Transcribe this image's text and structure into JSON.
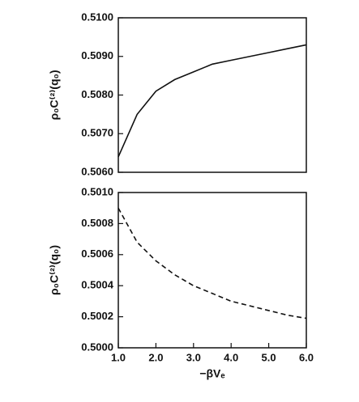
{
  "chart_data": [
    {
      "type": "line",
      "y_label": "ρ₀C⁽²⁾(q₀)",
      "x": [
        1.0,
        1.5,
        2.0,
        2.5,
        3.0,
        3.5,
        4.0,
        4.5,
        5.0,
        5.5,
        6.0
      ],
      "series": [
        {
          "color": "#111111",
          "linestyle": "solid",
          "values": [
            0.5064,
            0.5075,
            0.5081,
            0.5084,
            0.5086,
            0.5088,
            0.5089,
            0.509,
            0.5091,
            0.5092,
            0.5093
          ]
        }
      ],
      "xlim": [
        1.0,
        6.0
      ],
      "ylim": [
        0.506,
        0.51
      ],
      "yticks": [
        {
          "value": 0.506,
          "label": "0.5060"
        },
        {
          "value": 0.507,
          "label": "0.5070"
        },
        {
          "value": 0.508,
          "label": "0.5080"
        },
        {
          "value": 0.509,
          "label": "0.5090"
        },
        {
          "value": 0.51,
          "label": "0.5100"
        }
      ]
    },
    {
      "type": "line",
      "y_label": "ρ₀C⁽²⁾(q₀)",
      "x_label": "−βVₑ",
      "x": [
        1.0,
        1.5,
        2.0,
        2.5,
        3.0,
        3.5,
        4.0,
        4.5,
        5.0,
        5.5,
        6.0
      ],
      "series": [
        {
          "color": "#111111",
          "linestyle": "dashed",
          "values": [
            0.5009,
            0.50068,
            0.50056,
            0.50047,
            0.5004,
            0.50035,
            0.5003,
            0.50027,
            0.50024,
            0.50021,
            0.50019
          ]
        }
      ],
      "xlim": [
        1.0,
        6.0
      ],
      "xticks": [
        {
          "value": 1.0,
          "label": "1.0"
        },
        {
          "value": 2.0,
          "label": "2.0"
        },
        {
          "value": 3.0,
          "label": "3.0"
        },
        {
          "value": 4.0,
          "label": "4.0"
        },
        {
          "value": 5.0,
          "label": "5.0"
        },
        {
          "value": 6.0,
          "label": "6.0"
        }
      ],
      "ylim": [
        0.5,
        0.501
      ],
      "yticks": [
        {
          "value": 0.5,
          "label": "0.5000"
        },
        {
          "value": 0.5002,
          "label": "0.5002"
        },
        {
          "value": 0.5004,
          "label": "0.5004"
        },
        {
          "value": 0.5006,
          "label": "0.5006"
        },
        {
          "value": 0.5008,
          "label": "0.5008"
        },
        {
          "value": 0.501,
          "label": "0.5010"
        }
      ]
    }
  ]
}
